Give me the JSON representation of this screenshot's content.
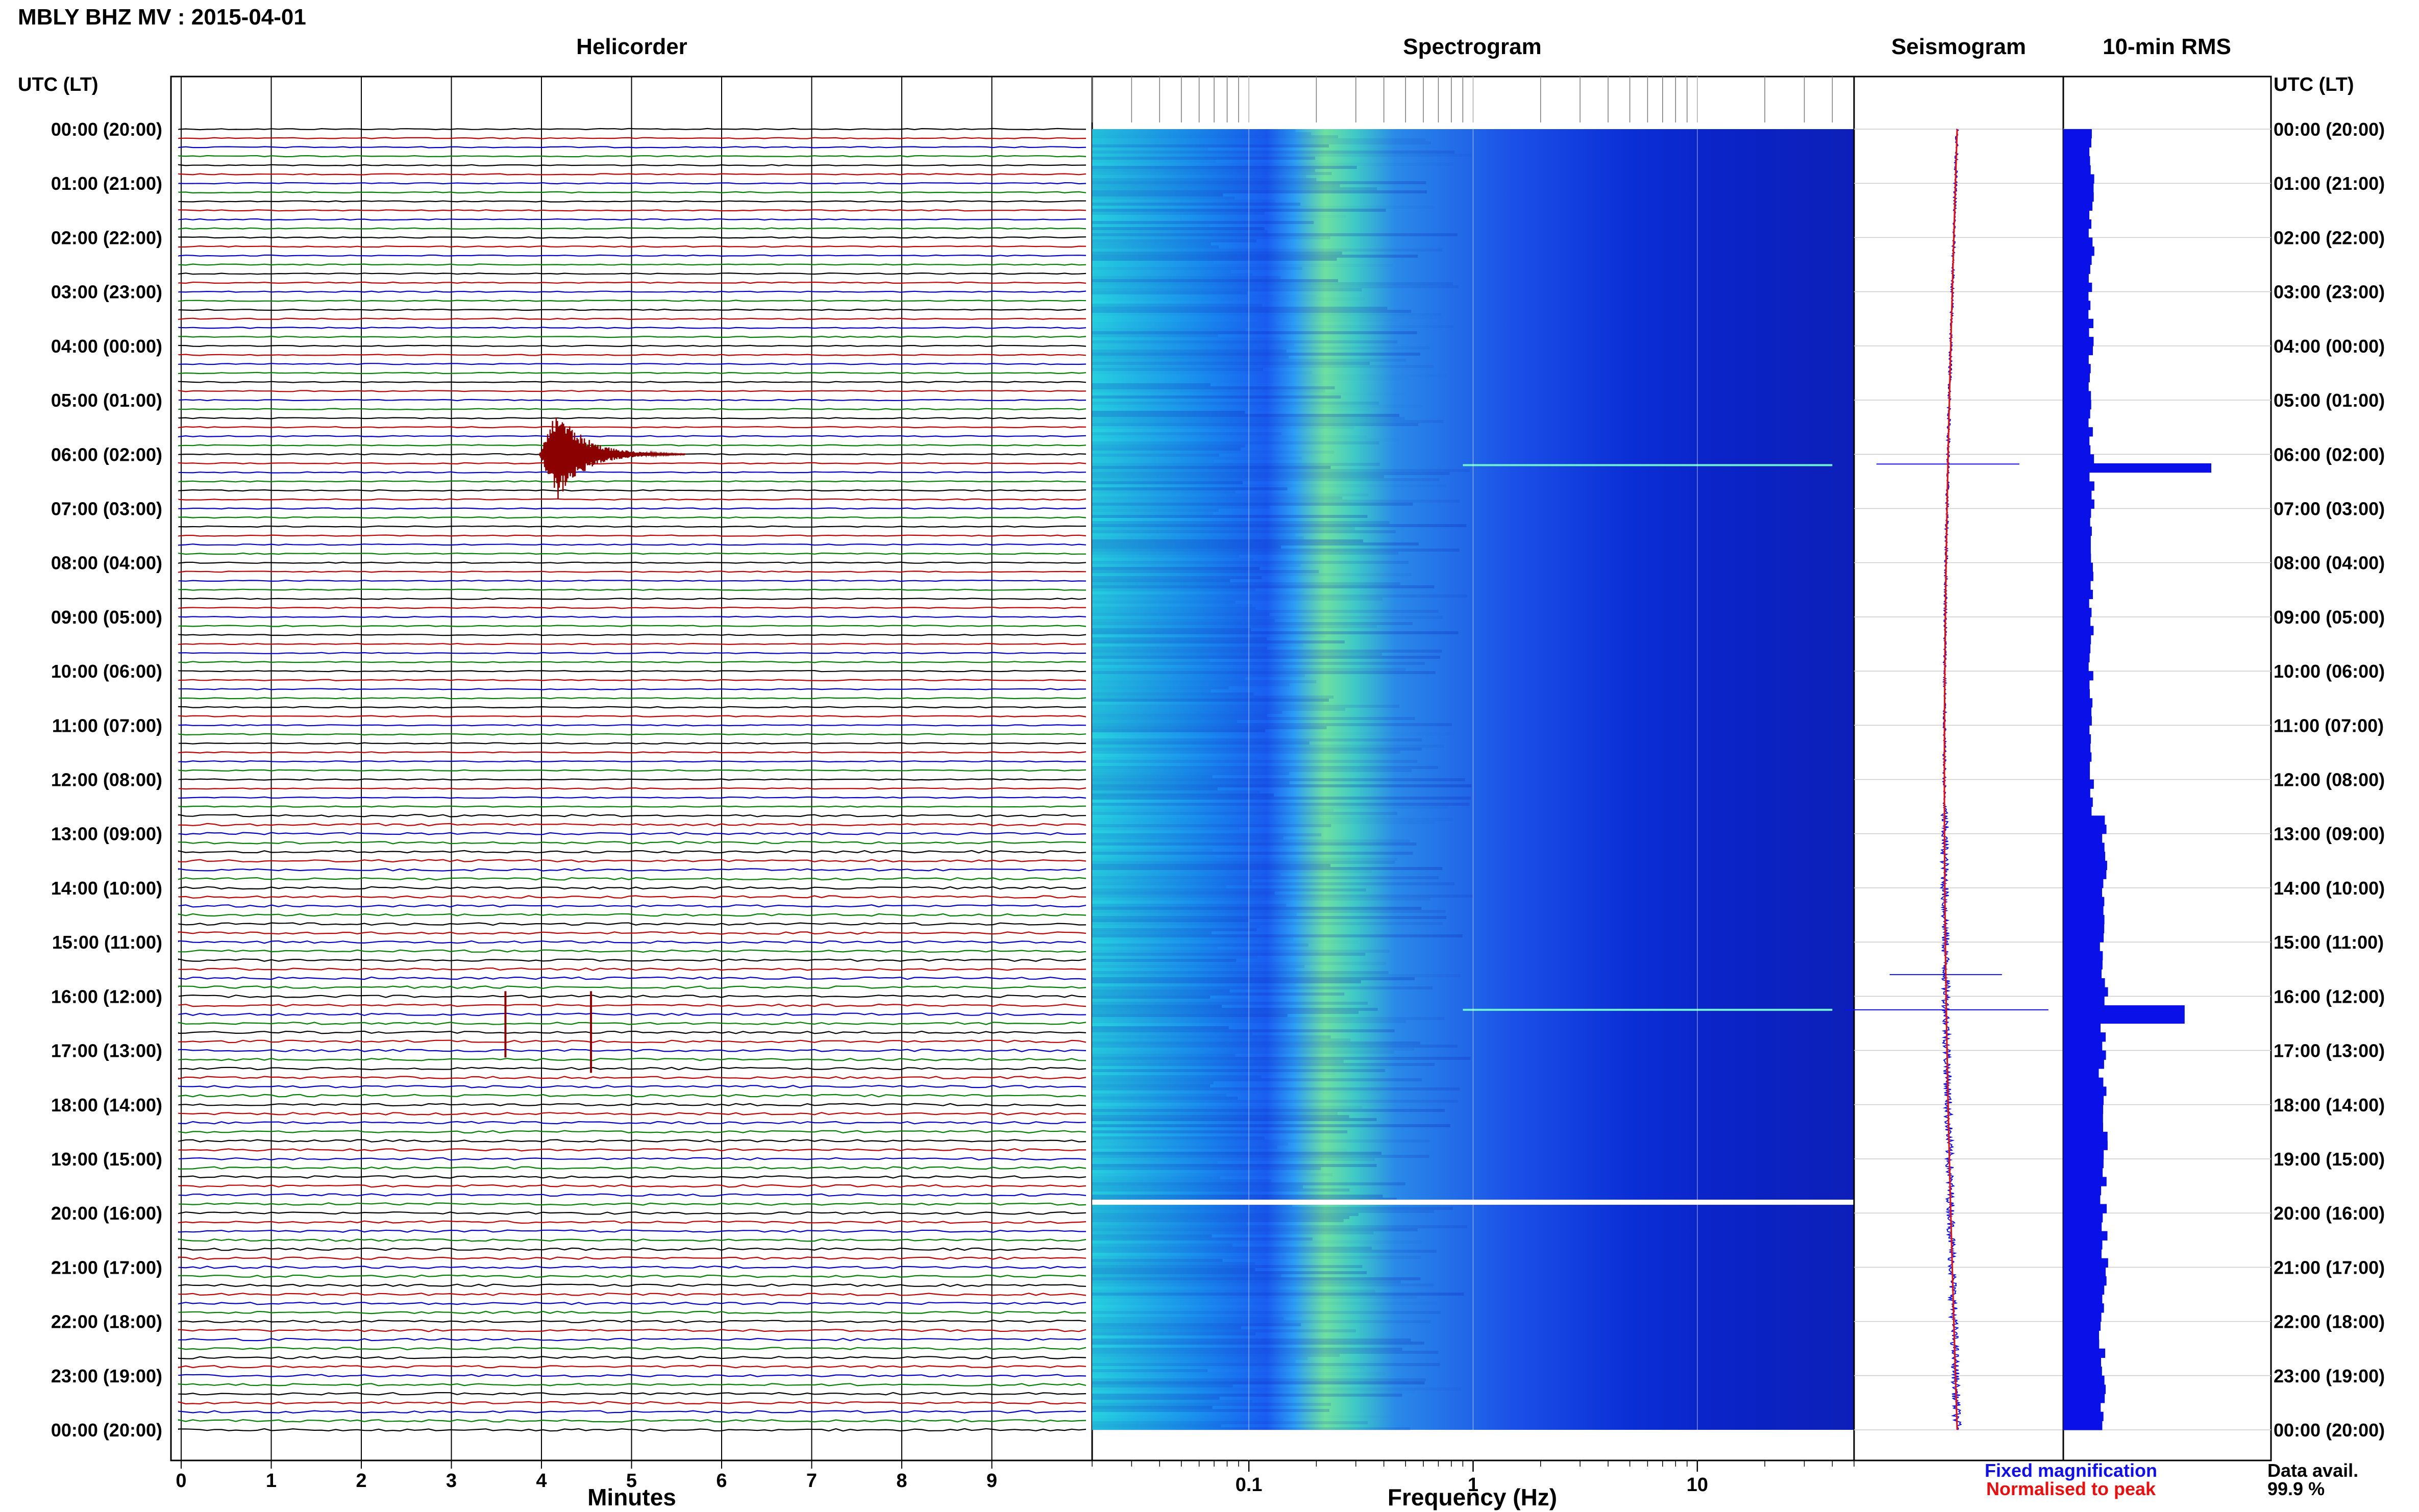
{
  "figure": {
    "title": "MBLY BHZ MV : 2015-04-01",
    "time_axis_label_left": "UTC (LT)",
    "time_axis_label_right": "UTC (LT)",
    "panels": {
      "helicorder": "Helicorder",
      "spectrogram": "Spectrogram",
      "seismogram": "Seismogram",
      "rms": "10-min RMS"
    },
    "legend": {
      "fixed": "Fixed magnification",
      "fixed_color": "#1010e6",
      "normalised": "Normalised to peak",
      "normalised_color": "#e61010"
    },
    "data_avail_label": "Data avail.",
    "data_avail_value": "99.9 %"
  },
  "chart_data": {
    "type": "composite",
    "time_ticks": [
      "00:00 (20:00)",
      "01:00 (21:00)",
      "02:00 (22:00)",
      "03:00 (23:00)",
      "04:00 (00:00)",
      "05:00 (01:00)",
      "06:00 (02:00)",
      "07:00 (03:00)",
      "08:00 (04:00)",
      "09:00 (05:00)",
      "10:00 (06:00)",
      "11:00 (07:00)",
      "12:00 (08:00)",
      "13:00 (09:00)",
      "14:00 (10:00)",
      "15:00 (11:00)",
      "16:00 (12:00)",
      "17:00 (13:00)",
      "18:00 (14:00)",
      "19:00 (15:00)",
      "20:00 (16:00)",
      "21:00 (17:00)",
      "22:00 (18:00)",
      "23:00 (19:00)",
      "00:00 (20:00)"
    ],
    "helicorder": {
      "xlabel": "Minutes",
      "xlim": [
        0,
        10
      ],
      "xticks": [
        0,
        1,
        2,
        3,
        4,
        5,
        6,
        7,
        8,
        9
      ],
      "lines_per_hour": 6,
      "line_colors": [
        "#000000",
        "#c00000",
        "#0000c8",
        "#008000"
      ],
      "event_color": "#8b0000",
      "events": [
        {
          "hour": 6,
          "minute": 4.2,
          "amplitude": 1.0
        },
        {
          "hour": 16,
          "minute": 3.6,
          "amplitude": 0.8
        },
        {
          "hour": 16,
          "minute": 4.55,
          "amplitude": 1.0
        }
      ]
    },
    "spectrogram": {
      "xlabel": "Frequency (Hz)",
      "xscale": "log",
      "xlim": [
        0.02,
        50
      ],
      "xticks": [
        0.1,
        1,
        10
      ],
      "xtick_labels": [
        "0.1",
        "1",
        "10"
      ],
      "peak_band_hz": [
        0.2,
        0.35
      ],
      "gap_hour": 19.8
    },
    "seismogram": {
      "series": [
        {
          "name": "Fixed magnification",
          "color": "#1010e6"
        },
        {
          "name": "Normalised to peak",
          "color": "#e61010"
        }
      ]
    },
    "rms": {
      "interval_minutes": 10,
      "peaks": [
        {
          "hour": 6.1,
          "value": 1.0
        },
        {
          "hour": 16.25,
          "value": 0.82
        }
      ]
    }
  }
}
